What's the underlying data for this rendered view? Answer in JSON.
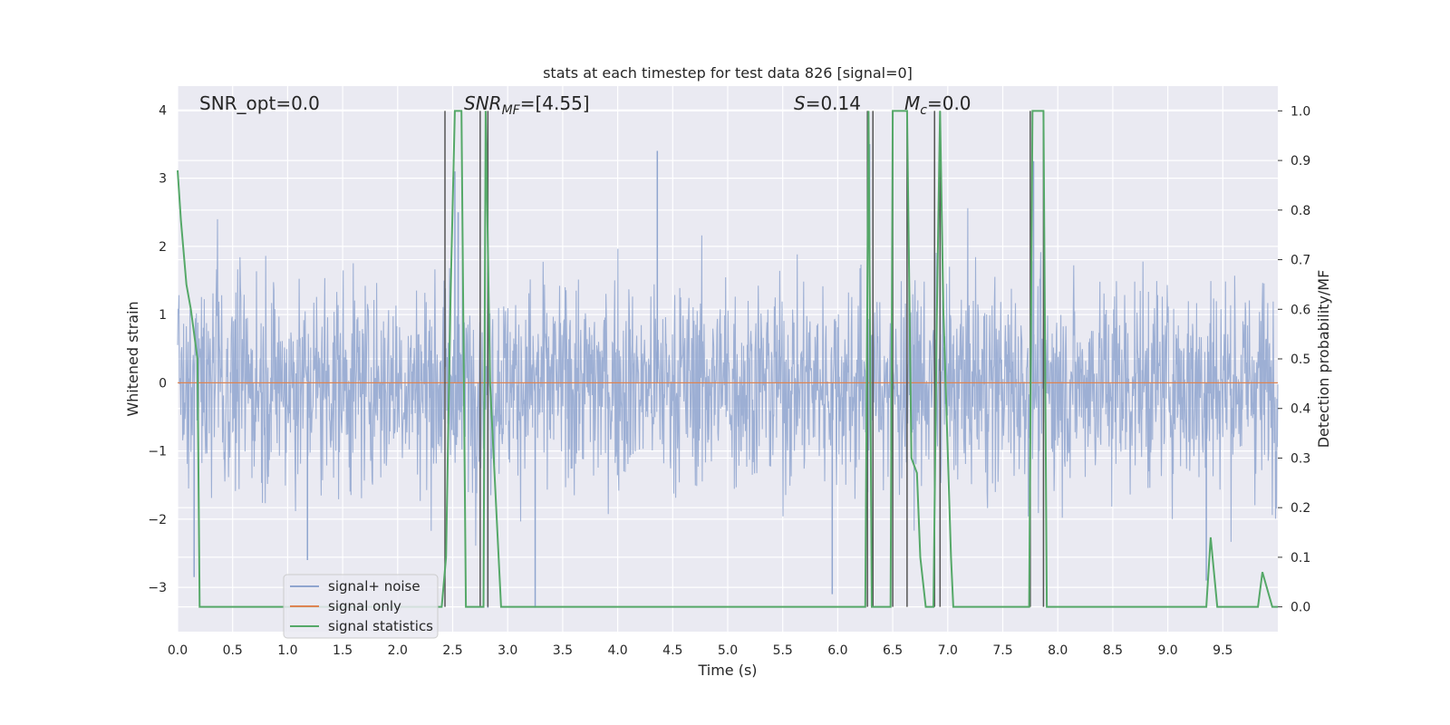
{
  "chart_data": {
    "type": "line",
    "title": "stats at each timestep for test data 826 [signal=0]",
    "xlabel": "Time (s)",
    "ylabel": "Whitened strain",
    "y2label": "Detection probability/MF",
    "xlim": [
      0.0,
      10.0
    ],
    "ylim": [
      -3.65,
      4.35
    ],
    "y2lim": [
      -0.05,
      1.05
    ],
    "xticks": [
      "0.0",
      "0.5",
      "1.0",
      "1.5",
      "2.0",
      "2.5",
      "3.0",
      "3.5",
      "4.0",
      "4.5",
      "5.0",
      "5.5",
      "6.0",
      "6.5",
      "7.0",
      "7.5",
      "8.0",
      "8.5",
      "9.0",
      "9.5"
    ],
    "yticks": [
      "4",
      "3",
      "2",
      "1",
      "0",
      "−1",
      "−2",
      "−3"
    ],
    "y2ticks": [
      "1.0",
      "0.9",
      "0.8",
      "0.7",
      "0.6",
      "0.5",
      "0.4",
      "0.3",
      "0.2",
      "0.1",
      "0.0"
    ],
    "grid": true,
    "legend_position": "lower-left",
    "annotations": {
      "snr_opt": "SNR_opt=0.0",
      "snr_mf_base": "SNR",
      "snr_mf_sub": "MF",
      "snr_mf_value": "=[4.55]",
      "s_label": "S",
      "s_value": "=0.14",
      "mc_base": "M",
      "mc_sub": "c",
      "mc_value": "=0.0"
    },
    "series": [
      {
        "name": "signal+ noise",
        "color": "#8fa5cf",
        "description_kind": "noise",
        "amplitude_std": 0.75
      },
      {
        "name": "signal only",
        "color": "#dd8452",
        "values_constant": 0.0
      },
      {
        "name": "signal statistics",
        "color": "#55a868",
        "axis": "right",
        "x": [
          0.0,
          0.03,
          0.08,
          0.12,
          0.18,
          0.2,
          0.5,
          1.0,
          2.0,
          2.4,
          2.44,
          2.48,
          2.52,
          2.58,
          2.62,
          2.74,
          2.78,
          2.8,
          2.84,
          2.94,
          3.5,
          5.0,
          6.2,
          6.25,
          6.28,
          6.31,
          6.36,
          6.48,
          6.5,
          6.55,
          6.63,
          6.67,
          6.72,
          6.75,
          6.8,
          6.87,
          6.9,
          6.93,
          6.96,
          7.03,
          7.05,
          7.3,
          7.74,
          7.77,
          7.8,
          7.87,
          7.9,
          7.95,
          8.5,
          9.35,
          9.39,
          9.45,
          9.82,
          9.86,
          9.95,
          10.0
        ],
        "y": [
          0.88,
          0.78,
          0.65,
          0.6,
          0.5,
          0.0,
          0.0,
          0.0,
          0.0,
          0.0,
          0.1,
          0.62,
          1.0,
          1.0,
          0.0,
          0.0,
          0.0,
          1.0,
          0.45,
          0.0,
          0.0,
          0.0,
          0.0,
          0.0,
          1.0,
          0.0,
          0.0,
          0.0,
          1.0,
          1.0,
          1.0,
          0.3,
          0.27,
          0.1,
          0.0,
          0.0,
          0.58,
          1.0,
          0.6,
          0.1,
          0.0,
          0.0,
          0.0,
          1.0,
          1.0,
          1.0,
          0.0,
          0.0,
          0.0,
          0.0,
          0.14,
          0.0,
          0.0,
          0.07,
          0.0,
          0.0
        ]
      }
    ],
    "event_markers_x": [
      2.43,
      2.75,
      2.82,
      6.27,
      6.32,
      6.5,
      6.63,
      6.88,
      6.93,
      7.75,
      7.87
    ],
    "noise_spikes": [
      [
        2.52,
        3.1
      ],
      [
        4.36,
        3.4
      ],
      [
        7.78,
        3.25
      ],
      [
        2.55,
        2.5
      ],
      [
        6.29,
        3.5
      ],
      [
        2.82,
        -3.3
      ],
      [
        3.25,
        -3.3
      ],
      [
        0.15,
        -2.85
      ],
      [
        1.18,
        -2.6
      ],
      [
        5.95,
        -3.1
      ],
      [
        9.35,
        -2.9
      ]
    ]
  },
  "legend": {
    "items": [
      {
        "label": "signal+ noise",
        "color": "#8fa5cf"
      },
      {
        "label": "signal only",
        "color": "#dd8452"
      },
      {
        "label": "signal statistics",
        "color": "#55a868"
      }
    ]
  }
}
